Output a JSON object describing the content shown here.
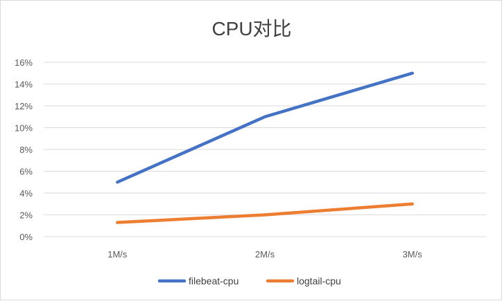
{
  "chart_data": {
    "type": "line",
    "title": "CPU对比",
    "categories": [
      "1M/s",
      "2M/s",
      "3M/s"
    ],
    "y_ticks": [
      "0%",
      "2%",
      "4%",
      "6%",
      "8%",
      "10%",
      "12%",
      "14%",
      "16%"
    ],
    "ylim": [
      0,
      0.16
    ],
    "grid": true,
    "legend_position": "bottom",
    "series": [
      {
        "name": "filebeat-cpu",
        "color": "#4472C4",
        "values": [
          0.05,
          0.11,
          0.15
        ]
      },
      {
        "name": "logtail-cpu",
        "color": "#ED7D31",
        "values": [
          0.013,
          0.02,
          0.03
        ]
      }
    ]
  }
}
